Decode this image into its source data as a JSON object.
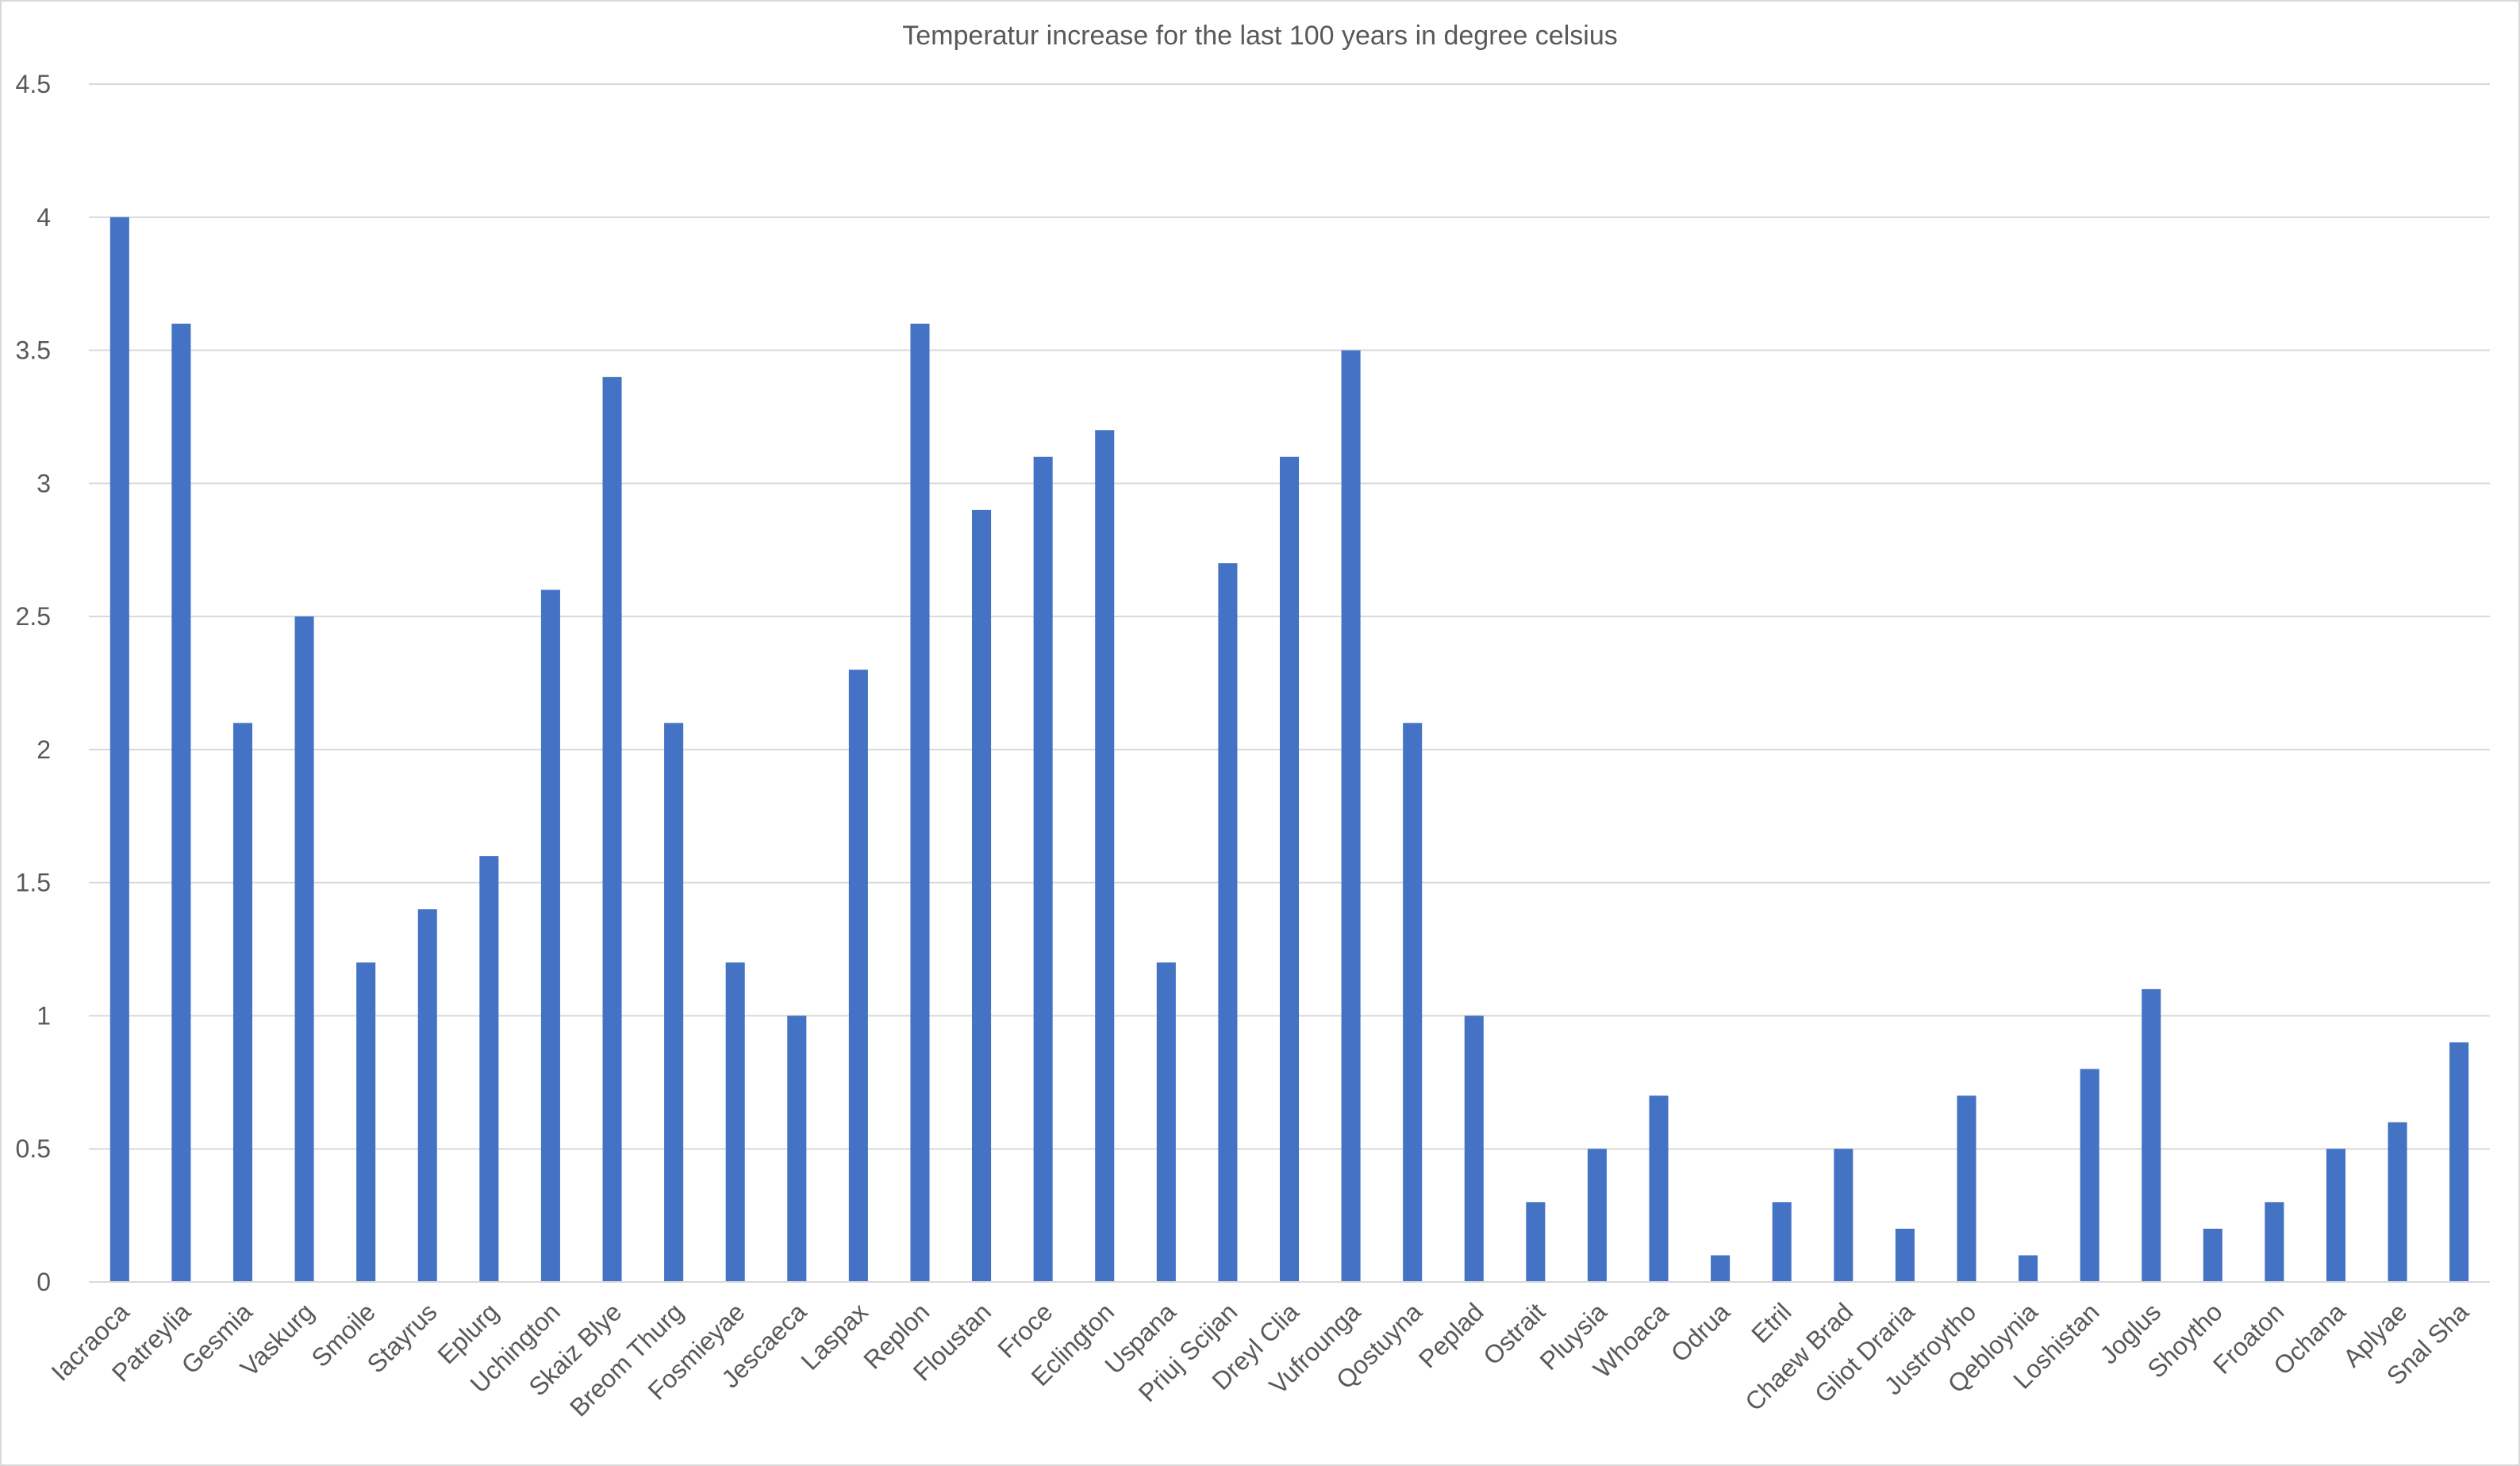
{
  "colors": {
    "bar": "#4472C4",
    "grid": "#D9D9D9",
    "text": "#595959",
    "frame": "#D9D9D9",
    "background": "#FFFFFF"
  },
  "chart_data": {
    "type": "bar",
    "title": "Temperatur increase for the last 100 years in degree celsius",
    "xlabel": "",
    "ylabel": "",
    "ylim": [
      0,
      4.5
    ],
    "y_ticks": [
      "0",
      "0.5",
      "1",
      "1.5",
      "2",
      "2.5",
      "3",
      "3.5",
      "4",
      "4.5"
    ],
    "grid": true,
    "legend": "none",
    "categories": [
      "Iacraoca",
      "Patreylia",
      "Gesmia",
      "Vaskurg",
      "Smoile",
      "Stayrus",
      "Eplurg",
      "Uchington",
      "Skaiz Blye",
      "Breom Thurg",
      "Fosmieyae",
      "Jescaeca",
      "Laspax",
      "Replon",
      "Floustan",
      "Froce",
      "Eclington",
      "Uspana",
      "Priuj Scijan",
      "Dreyl Clia",
      "Vufrounga",
      "Qostuyna",
      "Peplad",
      "Ostrait",
      "Pluysia",
      "Whoaca",
      "Odrua",
      "Etril",
      "Chaew Brad",
      "Gliot Draria",
      "Justroytho",
      "Qebloynia",
      "Loshistan",
      "Joglus",
      "Shoytho",
      "Froaton",
      "Ochana",
      "Aplyae",
      "Snal Sha"
    ],
    "values": [
      4.0,
      3.6,
      2.1,
      2.5,
      1.2,
      1.4,
      1.6,
      2.6,
      3.4,
      2.1,
      1.2,
      1.0,
      2.3,
      3.6,
      2.9,
      3.1,
      3.2,
      1.2,
      2.7,
      3.1,
      3.5,
      2.1,
      1.0,
      0.3,
      0.5,
      0.7,
      0.1,
      0.3,
      0.5,
      0.2,
      0.7,
      0.1,
      0.8,
      1.1,
      0.2,
      0.3,
      0.5,
      0.6,
      0.9
    ]
  }
}
